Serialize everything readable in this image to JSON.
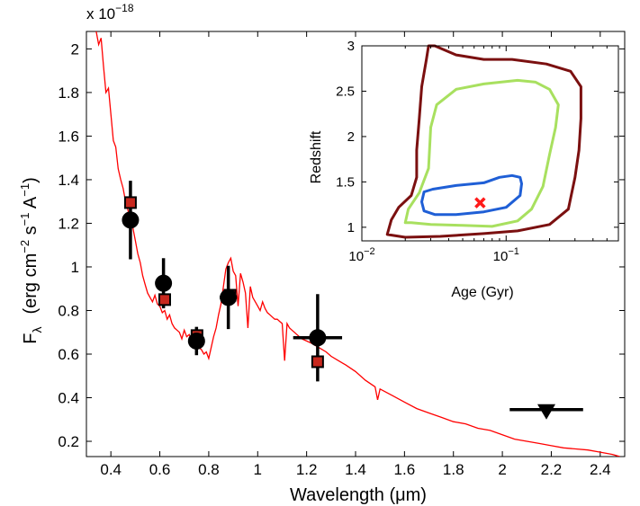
{
  "chart_data": [
    {
      "type": "line",
      "xlabel": "Wavelength  (μm)",
      "ylabel": "F",
      "ylabel_sub": "λ",
      "ylabel_units": "(erg cm",
      "ylabel_units_exp1": "−2",
      "ylabel_units_mid": " s",
      "ylabel_units_exp2": "−1",
      "ylabel_units_end": " A",
      "ylabel_units_exp3": "−1",
      "ylabel_units_close": ")",
      "y_multiplier_base": "x 10",
      "y_multiplier_exp": "−18",
      "xlim": [
        0.3,
        2.5
      ],
      "ylim": [
        0.13,
        2.08
      ],
      "x_ticks": [
        0.4,
        0.6,
        0.8,
        1,
        1.2,
        1.4,
        1.6,
        1.8,
        2,
        2.2,
        2.4
      ],
      "x_tick_labels": [
        "0.4",
        "0.6",
        "0.8",
        "1",
        "1.2",
        "1.4",
        "1.6",
        "1.8",
        "2",
        "2.2",
        "2.4"
      ],
      "y_ticks": [
        0.2,
        0.4,
        0.6,
        0.8,
        1,
        1.2,
        1.4,
        1.6,
        1.8,
        2
      ],
      "y_tick_labels": [
        "0.2",
        "0.4",
        "0.6",
        "0.8",
        "1",
        "1.2",
        "1.4",
        "1.6",
        "1.8",
        "2"
      ],
      "grid": false,
      "model_spectrum": {
        "color": "#ff0000",
        "x": [
          0.34,
          0.35,
          0.36,
          0.37,
          0.38,
          0.39,
          0.4,
          0.41,
          0.42,
          0.43,
          0.44,
          0.45,
          0.46,
          0.47,
          0.48,
          0.49,
          0.5,
          0.51,
          0.52,
          0.53,
          0.54,
          0.55,
          0.56,
          0.57,
          0.58,
          0.59,
          0.6,
          0.61,
          0.62,
          0.63,
          0.64,
          0.65,
          0.66,
          0.67,
          0.68,
          0.69,
          0.7,
          0.71,
          0.72,
          0.73,
          0.74,
          0.75,
          0.76,
          0.77,
          0.78,
          0.79,
          0.8,
          0.81,
          0.82,
          0.83,
          0.84,
          0.85,
          0.86,
          0.87,
          0.88,
          0.89,
          0.9,
          0.91,
          0.92,
          0.93,
          0.94,
          0.95,
          0.96,
          0.97,
          0.98,
          0.99,
          1.0,
          1.01,
          1.02,
          1.03,
          1.04,
          1.05,
          1.06,
          1.07,
          1.08,
          1.09,
          1.1,
          1.11,
          1.12,
          1.13,
          1.14,
          1.15,
          1.16,
          1.18,
          1.2,
          1.22,
          1.25,
          1.28,
          1.3,
          1.33,
          1.36,
          1.4,
          1.44,
          1.48,
          1.49,
          1.5,
          1.55,
          1.6,
          1.65,
          1.7,
          1.75,
          1.8,
          1.85,
          1.9,
          1.95,
          2.0,
          2.05,
          2.1,
          2.15,
          2.2,
          2.25,
          2.3,
          2.35,
          2.4,
          2.45,
          2.48
        ],
        "y": [
          2.08,
          2.02,
          2.05,
          1.92,
          1.8,
          1.82,
          1.7,
          1.58,
          1.55,
          1.45,
          1.4,
          1.36,
          1.3,
          1.26,
          1.2,
          1.18,
          1.12,
          1.06,
          1.02,
          0.96,
          0.92,
          0.88,
          0.86,
          0.84,
          0.87,
          0.83,
          0.82,
          0.79,
          0.8,
          0.76,
          0.78,
          0.74,
          0.72,
          0.71,
          0.7,
          0.67,
          0.71,
          0.68,
          0.69,
          0.66,
          0.64,
          0.68,
          0.63,
          0.62,
          0.6,
          0.61,
          0.58,
          0.63,
          0.68,
          0.72,
          0.78,
          0.83,
          0.91,
          0.99,
          1.02,
          1.04,
          0.98,
          0.96,
          0.82,
          0.97,
          0.93,
          0.88,
          0.72,
          0.91,
          0.86,
          0.84,
          0.82,
          0.8,
          0.84,
          0.81,
          0.79,
          0.78,
          0.77,
          0.76,
          0.76,
          0.75,
          0.74,
          0.57,
          0.74,
          0.72,
          0.71,
          0.7,
          0.69,
          0.67,
          0.66,
          0.65,
          0.63,
          0.61,
          0.59,
          0.57,
          0.55,
          0.52,
          0.48,
          0.45,
          0.39,
          0.44,
          0.41,
          0.38,
          0.35,
          0.33,
          0.31,
          0.29,
          0.28,
          0.26,
          0.25,
          0.23,
          0.21,
          0.2,
          0.19,
          0.18,
          0.17,
          0.165,
          0.16,
          0.15,
          0.14,
          0.13
        ]
      },
      "observed": {
        "color": "#000000",
        "points": [
          {
            "x": 0.48,
            "y": 1.215,
            "xerr": 0.02,
            "yerr": 0.18
          },
          {
            "x": 0.615,
            "y": 0.925,
            "xerr": 0.03,
            "yerr": 0.115
          },
          {
            "x": 0.75,
            "y": 0.66,
            "xerr": 0.02,
            "yerr": 0.065
          },
          {
            "x": 0.88,
            "y": 0.86,
            "xerr": 0.035,
            "yerr": 0.145
          },
          {
            "x": 1.245,
            "y": 0.675,
            "xerr": 0.1,
            "yerr": 0.2
          }
        ]
      },
      "upper_limit": {
        "x": 2.18,
        "y": 0.325,
        "xerr": 0.15,
        "color": "#000000"
      },
      "model_photometry": {
        "fill": "#c8281e",
        "edge": "#000000",
        "points": [
          {
            "x": 0.48,
            "y": 1.295
          },
          {
            "x": 0.62,
            "y": 0.85
          },
          {
            "x": 0.752,
            "y": 0.685
          },
          {
            "x": 0.887,
            "y": 0.87
          },
          {
            "x": 1.245,
            "y": 0.565
          }
        ]
      }
    },
    {
      "type": "contour",
      "xlabel": "Age  (Gyr)",
      "ylabel": "Redshift",
      "x_scale": "log",
      "xlim": [
        0.01,
        0.6
      ],
      "ylim": [
        0.85,
        3.0
      ],
      "x_tick_base": "10",
      "x_ticks": [
        0.01,
        0.1
      ],
      "x_tick_exps": [
        "−2",
        "−1"
      ],
      "y_ticks": [
        1,
        1.5,
        2,
        2.5,
        3
      ],
      "y_tick_labels": [
        "1",
        "1.5",
        "2",
        "2.5",
        "3"
      ],
      "contours": [
        {
          "color": "#1f5fd6",
          "points": [
            [
              0.026,
              1.28
            ],
            [
              0.027,
              1.39
            ],
            [
              0.031,
              1.42
            ],
            [
              0.045,
              1.46
            ],
            [
              0.07,
              1.49
            ],
            [
              0.09,
              1.55
            ],
            [
              0.11,
              1.57
            ],
            [
              0.125,
              1.55
            ],
            [
              0.128,
              1.48
            ],
            [
              0.125,
              1.35
            ],
            [
              0.1,
              1.22
            ],
            [
              0.07,
              1.17
            ],
            [
              0.045,
              1.14
            ],
            [
              0.032,
              1.14
            ],
            [
              0.027,
              1.18
            ],
            [
              0.026,
              1.28
            ]
          ]
        },
        {
          "color": "#a8e05f",
          "points": [
            [
              0.02,
              1.05
            ],
            [
              0.021,
              1.2
            ],
            [
              0.025,
              1.38
            ],
            [
              0.029,
              1.65
            ],
            [
              0.03,
              2.1
            ],
            [
              0.033,
              2.35
            ],
            [
              0.045,
              2.52
            ],
            [
              0.07,
              2.58
            ],
            [
              0.12,
              2.62
            ],
            [
              0.16,
              2.6
            ],
            [
              0.2,
              2.52
            ],
            [
              0.23,
              2.35
            ],
            [
              0.22,
              2.1
            ],
            [
              0.2,
              1.8
            ],
            [
              0.18,
              1.45
            ],
            [
              0.15,
              1.2
            ],
            [
              0.12,
              1.07
            ],
            [
              0.08,
              1.01
            ],
            [
              0.05,
              1.02
            ],
            [
              0.03,
              1.03
            ],
            [
              0.022,
              1.05
            ],
            [
              0.02,
              1.05
            ]
          ]
        },
        {
          "color": "#7b1010",
          "points": [
            [
              0.015,
              0.92
            ],
            [
              0.016,
              1.08
            ],
            [
              0.018,
              1.22
            ],
            [
              0.022,
              1.35
            ],
            [
              0.024,
              1.55
            ],
            [
              0.024,
              1.85
            ],
            [
              0.025,
              2.2
            ],
            [
              0.026,
              2.55
            ],
            [
              0.028,
              2.85
            ],
            [
              0.029,
              3.0
            ],
            [
              0.032,
              3.0
            ],
            [
              0.045,
              2.9
            ],
            [
              0.07,
              2.85
            ],
            [
              0.11,
              2.85
            ],
            [
              0.19,
              2.8
            ],
            [
              0.28,
              2.72
            ],
            [
              0.33,
              2.55
            ],
            [
              0.33,
              2.2
            ],
            [
              0.32,
              1.85
            ],
            [
              0.3,
              1.55
            ],
            [
              0.27,
              1.2
            ],
            [
              0.2,
              1.03
            ],
            [
              0.12,
              0.96
            ],
            [
              0.07,
              0.93
            ],
            [
              0.035,
              0.9
            ],
            [
              0.02,
              0.89
            ],
            [
              0.015,
              0.92
            ]
          ]
        }
      ],
      "best_fit": {
        "x": 0.066,
        "y": 1.27,
        "marker": "x",
        "color": "#ff1a1a"
      }
    }
  ]
}
